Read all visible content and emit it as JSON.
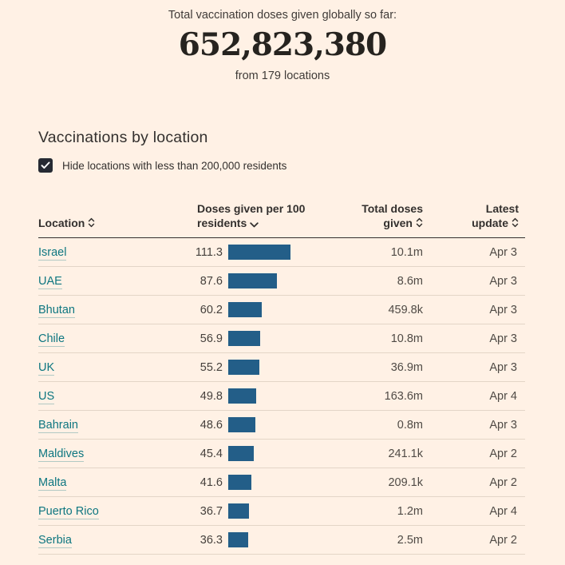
{
  "colors": {
    "background": "#fff1e5",
    "bar": "#235e88",
    "link": "#0d7680",
    "text": "#33302e",
    "divider": "#e3d5c7"
  },
  "header": {
    "subtitle": "Total vaccination doses given globally so far:",
    "total": "652,823,380",
    "locations_note": "from 179 locations"
  },
  "section": {
    "title": "Vaccinations by location",
    "filter_label": "Hide locations with less than 200,000 residents",
    "filter_checked": true
  },
  "table": {
    "columns": [
      {
        "id": "location",
        "line1": "Location",
        "line2": "",
        "sort": "sortable"
      },
      {
        "id": "doses_per_100",
        "line1": "Doses given per 100",
        "line2": "residents",
        "sort": "desc"
      },
      {
        "id": "total_doses",
        "line1": "Total doses",
        "line2": "given",
        "sort": "sortable"
      },
      {
        "id": "latest_update",
        "line1": "Latest",
        "line2": "update",
        "sort": "sortable"
      }
    ],
    "rows": [
      {
        "location": "Israel",
        "doses_per_100": "111.3",
        "total_doses": "10.1m",
        "latest_update": "Apr 3"
      },
      {
        "location": "UAE",
        "doses_per_100": "87.6",
        "total_doses": "8.6m",
        "latest_update": "Apr 3"
      },
      {
        "location": "Bhutan",
        "doses_per_100": "60.2",
        "total_doses": "459.8k",
        "latest_update": "Apr 3"
      },
      {
        "location": "Chile",
        "doses_per_100": "56.9",
        "total_doses": "10.8m",
        "latest_update": "Apr 3"
      },
      {
        "location": "UK",
        "doses_per_100": "55.2",
        "total_doses": "36.9m",
        "latest_update": "Apr 3"
      },
      {
        "location": "US",
        "doses_per_100": "49.8",
        "total_doses": "163.6m",
        "latest_update": "Apr 4"
      },
      {
        "location": "Bahrain",
        "doses_per_100": "48.6",
        "total_doses": "0.8m",
        "latest_update": "Apr 3"
      },
      {
        "location": "Maldives",
        "doses_per_100": "45.4",
        "total_doses": "241.1k",
        "latest_update": "Apr 2"
      },
      {
        "location": "Malta",
        "doses_per_100": "41.6",
        "total_doses": "209.1k",
        "latest_update": "Apr 2"
      },
      {
        "location": "Puerto Rico",
        "doses_per_100": "36.7",
        "total_doses": "1.2m",
        "latest_update": "Apr 4"
      },
      {
        "location": "Serbia",
        "doses_per_100": "36.3",
        "total_doses": "2.5m",
        "latest_update": "Apr 2"
      }
    ]
  }
}
